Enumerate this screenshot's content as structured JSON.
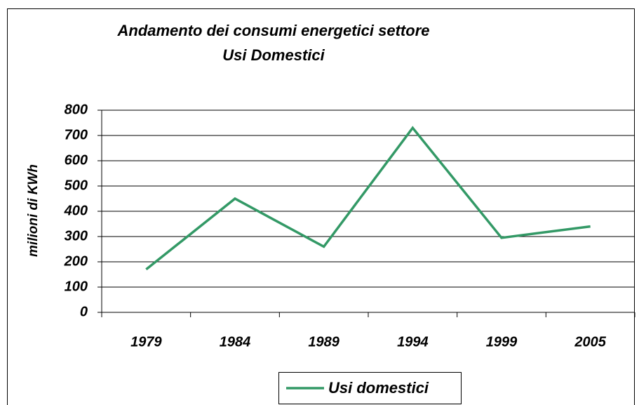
{
  "chart_data": {
    "type": "line",
    "title": [
      "Andamento dei consumi energetici settore",
      "Usi Domestici"
    ],
    "y_label": "milioni di KWh",
    "categories": [
      "1979",
      "1984",
      "1989",
      "1994",
      "1999",
      "2005"
    ],
    "series": [
      {
        "name": "Usi domestici",
        "color": "#339966",
        "values": [
          170,
          450,
          260,
          730,
          295,
          340
        ]
      }
    ],
    "ylim": [
      0,
      800
    ],
    "yticks": [
      0,
      100,
      200,
      300,
      400,
      500,
      600,
      700,
      800
    ],
    "grid": true,
    "legend": "bottom"
  }
}
